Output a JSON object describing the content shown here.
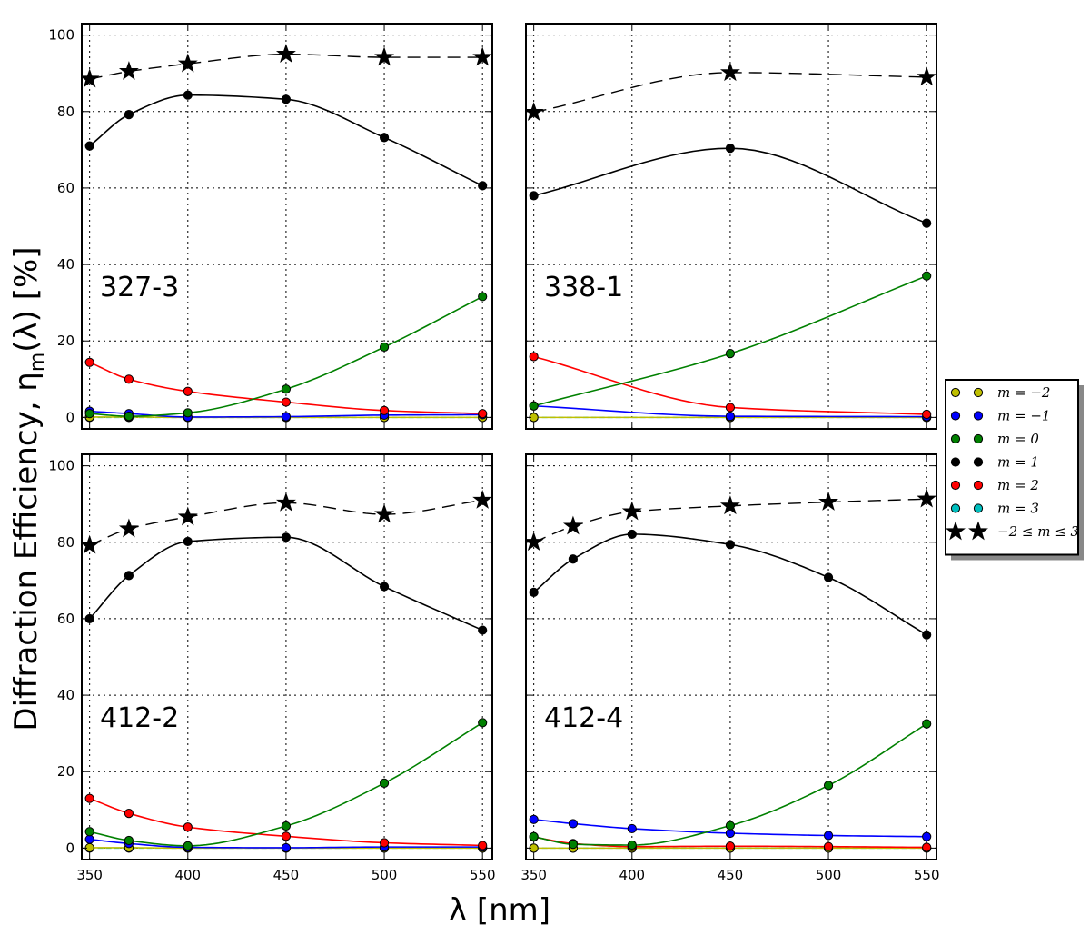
{
  "chart_data": {
    "type": "line",
    "ylabel": "Diffraction Efficiency, η",
    "ylabel_sub": "m",
    "ylabel_tail": "(λ) [%]",
    "xlabel": "λ [nm]",
    "xlim": [
      346,
      555
    ],
    "ylim": [
      -3,
      103
    ],
    "xticks": [
      350,
      400,
      450,
      500,
      550
    ],
    "yticks": [
      0,
      20,
      40,
      60,
      80,
      100
    ],
    "grid": true,
    "legend": {
      "position": "right",
      "entries": [
        {
          "key": "m_neg2",
          "label": "m = −2",
          "color": "#bfbf00"
        },
        {
          "key": "m_neg1",
          "label": "m = −1",
          "color": "#0000ff"
        },
        {
          "key": "m_0",
          "label": "m = 0",
          "color": "#008000"
        },
        {
          "key": "m_1",
          "label": "m = 1",
          "color": "#000000"
        },
        {
          "key": "m_2",
          "label": "m = 2",
          "color": "#ff0000"
        },
        {
          "key": "m_3",
          "label": "m = 3",
          "color": "#00bfbf"
        },
        {
          "key": "total",
          "label": "−2 ≤ m ≤ 3",
          "color": "#000000"
        }
      ]
    },
    "panels": [
      {
        "label": "327-3",
        "series": [
          {
            "key": "total",
            "x": [
              350,
              370,
              400,
              450,
              500,
              550
            ],
            "values": [
              88.5,
              90.5,
              92.5,
              95,
              94.2,
              94.2
            ]
          },
          {
            "key": "m_1",
            "x": [
              350,
              370,
              400,
              450,
              500,
              550
            ],
            "values": [
              71,
              79.2,
              84.3,
              83.2,
              73.2,
              60.6
            ]
          },
          {
            "key": "m_0",
            "x": [
              350,
              370,
              400,
              450,
              500,
              550
            ],
            "values": [
              1,
              0.3,
              1.2,
              7.4,
              18.4,
              31.6
            ]
          },
          {
            "key": "m_2",
            "x": [
              350,
              370,
              400,
              450,
              500,
              550
            ],
            "values": [
              14.4,
              10,
              6.8,
              4,
              1.8,
              1
            ]
          },
          {
            "key": "m_neg1",
            "x": [
              350,
              370,
              400,
              450,
              500,
              550
            ],
            "values": [
              1.6,
              1,
              0.1,
              0.2,
              0.6,
              0.7
            ]
          },
          {
            "key": "m_neg2",
            "x": [
              350,
              370,
              400,
              450,
              500,
              550
            ],
            "values": [
              0.1,
              0.1,
              0,
              0,
              0,
              0
            ]
          },
          {
            "key": "m_3",
            "x": [
              350,
              370,
              400,
              450,
              500,
              550
            ],
            "values": [
              0,
              0,
              0,
              0,
              0,
              0
            ]
          }
        ]
      },
      {
        "label": "338-1",
        "series": [
          {
            "key": "total",
            "x": [
              350,
              450,
              550
            ],
            "values": [
              79.8,
              90.2,
              89
            ]
          },
          {
            "key": "m_1",
            "x": [
              350,
              450,
              550
            ],
            "values": [
              58,
              70.4,
              50.8
            ]
          },
          {
            "key": "m_0",
            "x": [
              350,
              450,
              550
            ],
            "values": [
              3,
              16.7,
              37
            ]
          },
          {
            "key": "m_2",
            "x": [
              350,
              450,
              550
            ],
            "values": [
              15.9,
              2.6,
              0.8
            ]
          },
          {
            "key": "m_neg1",
            "x": [
              350,
              450,
              550
            ],
            "values": [
              3,
              0.3,
              0.2
            ]
          },
          {
            "key": "m_neg2",
            "x": [
              350,
              450,
              550
            ],
            "values": [
              0,
              0,
              0
            ]
          },
          {
            "key": "m_3",
            "x": [
              350,
              450,
              550
            ],
            "values": [
              0,
              0,
              0
            ]
          }
        ]
      },
      {
        "label": "412-2",
        "series": [
          {
            "key": "total",
            "x": [
              350,
              370,
              400,
              450,
              500,
              550
            ],
            "values": [
              79.2,
              83.5,
              86.6,
              90.3,
              87.3,
              91
            ]
          },
          {
            "key": "m_1",
            "x": [
              350,
              370,
              400,
              450,
              500,
              550
            ],
            "values": [
              60,
              71.3,
              80.2,
              81.3,
              68.4,
              57
            ]
          },
          {
            "key": "m_0",
            "x": [
              350,
              370,
              400,
              450,
              500,
              550
            ],
            "values": [
              4.3,
              2,
              0.6,
              5.8,
              17,
              32.8
            ]
          },
          {
            "key": "m_2",
            "x": [
              350,
              370,
              400,
              450,
              500,
              550
            ],
            "values": [
              13,
              9.1,
              5.5,
              3.1,
              1.4,
              0.7
            ]
          },
          {
            "key": "m_neg1",
            "x": [
              350,
              370,
              400,
              450,
              500,
              550
            ],
            "values": [
              2.3,
              1.2,
              0.2,
              0.1,
              0.3,
              0.3
            ]
          },
          {
            "key": "m_neg2",
            "x": [
              350,
              370,
              400,
              450,
              500,
              550
            ],
            "values": [
              0.1,
              0.1,
              0,
              0,
              0,
              0
            ]
          },
          {
            "key": "m_3",
            "x": [
              350,
              370,
              400,
              450,
              500,
              550
            ],
            "values": [
              0,
              0,
              0,
              0,
              0,
              0
            ]
          }
        ]
      },
      {
        "label": "412-4",
        "series": [
          {
            "key": "total",
            "x": [
              350,
              370,
              400,
              450,
              500,
              550
            ],
            "values": [
              80,
              84.2,
              88,
              89.5,
              90.5,
              91.3
            ]
          },
          {
            "key": "m_1",
            "x": [
              350,
              370,
              400,
              450,
              500,
              550
            ],
            "values": [
              66.9,
              75.6,
              82.1,
              79.4,
              70.8,
              55.8
            ]
          },
          {
            "key": "m_0",
            "x": [
              350,
              370,
              400,
              450,
              500,
              550
            ],
            "values": [
              3,
              1,
              0.8,
              5.9,
              16.4,
              32.5
            ]
          },
          {
            "key": "m_2",
            "x": [
              350,
              370,
              400,
              450,
              500,
              550
            ],
            "values": [
              2.9,
              1.2,
              0.4,
              0.5,
              0.4,
              0.2
            ]
          },
          {
            "key": "m_neg1",
            "x": [
              350,
              370,
              400,
              450,
              500,
              550
            ],
            "values": [
              7.5,
              6.4,
              5.1,
              3.9,
              3.3,
              3
            ]
          },
          {
            "key": "m_neg2",
            "x": [
              350,
              370,
              400,
              450,
              500,
              550
            ],
            "values": [
              0,
              0,
              0,
              0,
              0,
              0
            ]
          },
          {
            "key": "m_3",
            "x": [
              350,
              370,
              400,
              450,
              500,
              550
            ],
            "values": [
              0,
              0,
              0,
              0,
              0,
              0
            ]
          }
        ]
      }
    ]
  }
}
